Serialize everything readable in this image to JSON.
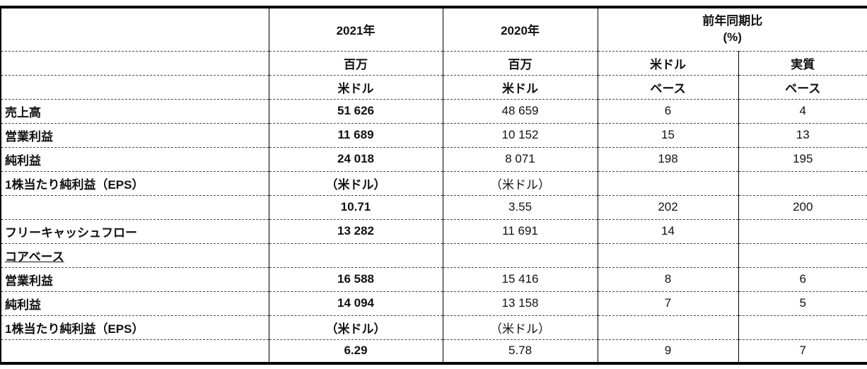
{
  "header": {
    "item_blank": "",
    "y2021": "2021年",
    "y2020": "2020年",
    "yoy_line1": "前年同期比",
    "yoy_line2": "(%)",
    "unit_2021_line1": "百万",
    "unit_2021_line2": "米ドル",
    "unit_2020_line1": "百万",
    "unit_2020_line2": "米ドル",
    "usd_base_line1": "米ドル",
    "usd_base_line2": "ベース",
    "real_base_line1": "実質",
    "real_base_line2": "ベース"
  },
  "rows": [
    {
      "label": "売上高",
      "v2021": "51 626",
      "v2020": "48 659",
      "usd": "6",
      "real": "4"
    },
    {
      "label": "営業利益",
      "v2021": "11 689",
      "v2020": "10 152",
      "usd": "15",
      "real": "13"
    },
    {
      "label": "純利益",
      "v2021": "24 018",
      "v2020": "8 071",
      "usd": "198",
      "real": "195"
    },
    {
      "label": "1株当たり純利益（EPS）",
      "v2021": "（米ドル）",
      "v2020": "（米ドル）",
      "usd": "",
      "real": ""
    },
    {
      "label": "",
      "v2021": "10.71",
      "v2020": "3.55",
      "usd": "202",
      "real": "200"
    },
    {
      "label": "フリーキャッシュフロー",
      "v2021": "13 282",
      "v2020": "11 691",
      "usd": "14",
      "real": ""
    },
    {
      "label": "コアベース",
      "v2021": "",
      "v2020": "",
      "usd": "",
      "real": ""
    },
    {
      "label": "営業利益",
      "v2021": "16 588",
      "v2020": "15 416",
      "usd": "8",
      "real": "6"
    },
    {
      "label": "純利益",
      "v2021": "14 094",
      "v2020": "13 158",
      "usd": "7",
      "real": "5"
    },
    {
      "label": "1株当たり純利益（EPS）",
      "v2021": "（米ドル）",
      "v2020": "（米ドル）",
      "usd": "",
      "real": ""
    },
    {
      "label": "",
      "v2021": "6.29",
      "v2020": "5.78",
      "usd": "9",
      "real": "7"
    }
  ]
}
